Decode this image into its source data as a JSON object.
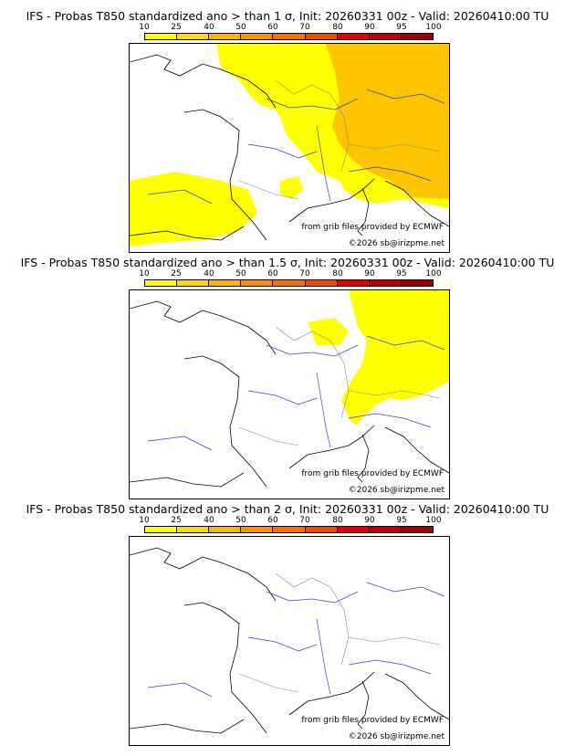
{
  "colorbar": {
    "ticks": [
      "10",
      "25",
      "40",
      "50",
      "60",
      "70",
      "80",
      "90",
      "95",
      "100"
    ],
    "colors": [
      "#ffff00",
      "#fddb00",
      "#fbb800",
      "#f99500",
      "#f57200",
      "#ef4b00",
      "#e40000",
      "#c00000",
      "#9c0000",
      "#6e0000"
    ]
  },
  "panels": [
    {
      "title": "IFS - Probas T850  standardized ano > than 1 σ, Init: 20260331 00z - Valid: 20260410:00 TU",
      "source": "from grib files provided by ECMWF",
      "copyright": "©2026 sb@irizpme.net",
      "probability_zones": [
        {
          "area": "north-east France, Benelux, Germany, Switzerland, Alps",
          "class": "10-25"
        },
        {
          "area": "central/eastern Germany, Czech area, Alps, north-west Italy",
          "class": "25-40"
        },
        {
          "area": "south-west France coast, central Spain",
          "class": "10-25"
        }
      ]
    },
    {
      "title": "IFS - Probas T850  standardized ano > than 1.5 σ, Init: 20260331 00z - Valid: 20260410:00 TU",
      "source": "from grib files provided by ECMWF",
      "copyright": "©2026 sb@irizpme.net",
      "probability_zones": [
        {
          "area": "north-east France, Germany, Switzerland, Alps",
          "class": "10-25"
        }
      ]
    },
    {
      "title": "IFS - Probas T850  standardized ano > than 2 σ, Init: 20260331 00z - Valid: 20260410:00 TU",
      "source": "from grib files provided by ECMWF",
      "copyright": "©2026 sb@irizpme.net",
      "probability_zones": []
    }
  ]
}
